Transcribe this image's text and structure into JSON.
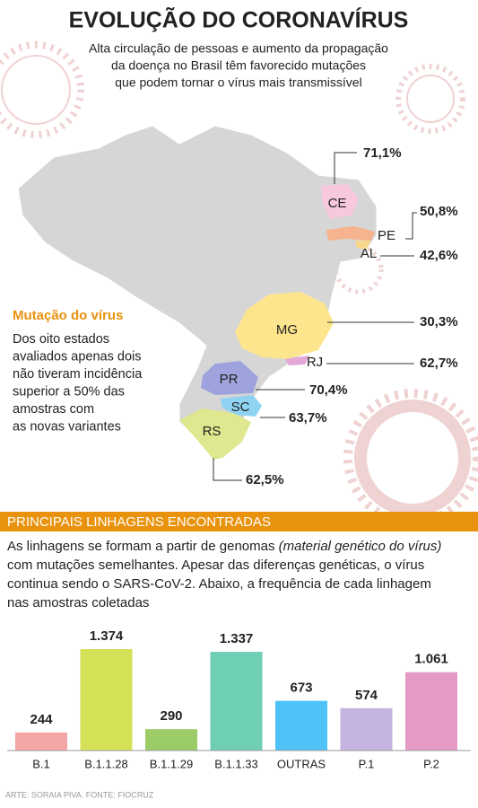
{
  "header": {
    "title": "EVOLUÇÃO DO CORONAVÍRUS",
    "subtitle_lines": [
      "Alta circulação de pessoas e aumento da propagação",
      "da doença no Brasil têm favorecido mutações",
      "que podem tornar o vírus mais transmissível"
    ]
  },
  "map": {
    "side_title": "Mutação do vírus",
    "side_lines": [
      "Dos oito estados",
      "avaliados apenas dois",
      "não tiveram incidência",
      "superior a 50% das",
      "amostras  com",
      "as novas variantes"
    ],
    "states": [
      {
        "name": "CE",
        "label": "71,1%"
      },
      {
        "name": "PE",
        "label": "50,8%"
      },
      {
        "name": "AL",
        "label": "42,6%"
      },
      {
        "name": "MG",
        "label": "30,3%"
      },
      {
        "name": "RJ",
        "label": "62,7%"
      },
      {
        "name": "PR",
        "label": "70,4%"
      },
      {
        "name": "SC",
        "label": "63,7%"
      },
      {
        "name": "RS",
        "label": "62,5%"
      }
    ]
  },
  "section": {
    "title": "PRINCIPAIS LINHAGENS ENCONTRADAS",
    "paragraph": {
      "line1_before": "As linhagens se formam a partir de genomas ",
      "line1_italic": "(material genético do vírus)",
      "lines": [
        "com mutações semelhantes. Apesar das diferenças genéticas, o vírus",
        "continua sendo o SARS-CoV-2. Abaixo, a frequência de cada linhagem",
        "nas amostras coletadas"
      ]
    }
  },
  "chart_data": {
    "type": "bar",
    "categories": [
      "B.1",
      "B.1.1.28",
      "B.1.1.29",
      "B.1.1.33",
      "OUTRAS",
      "P.1",
      "P.2"
    ],
    "values": [
      244,
      1374,
      290,
      1337,
      673,
      574,
      1061
    ],
    "value_labels": [
      "244",
      "1.374",
      "290",
      "1.337",
      "673",
      "574",
      "1.061"
    ],
    "colors": [
      "#f4a6a6",
      "#d4e157",
      "#9ccc65",
      "#6fcfb5",
      "#4fc3f7",
      "#c5b3e0",
      "#e59ac6"
    ]
  },
  "footer": "ARTE: SORAIA PIVA. FONTE: FIOCRUZ"
}
